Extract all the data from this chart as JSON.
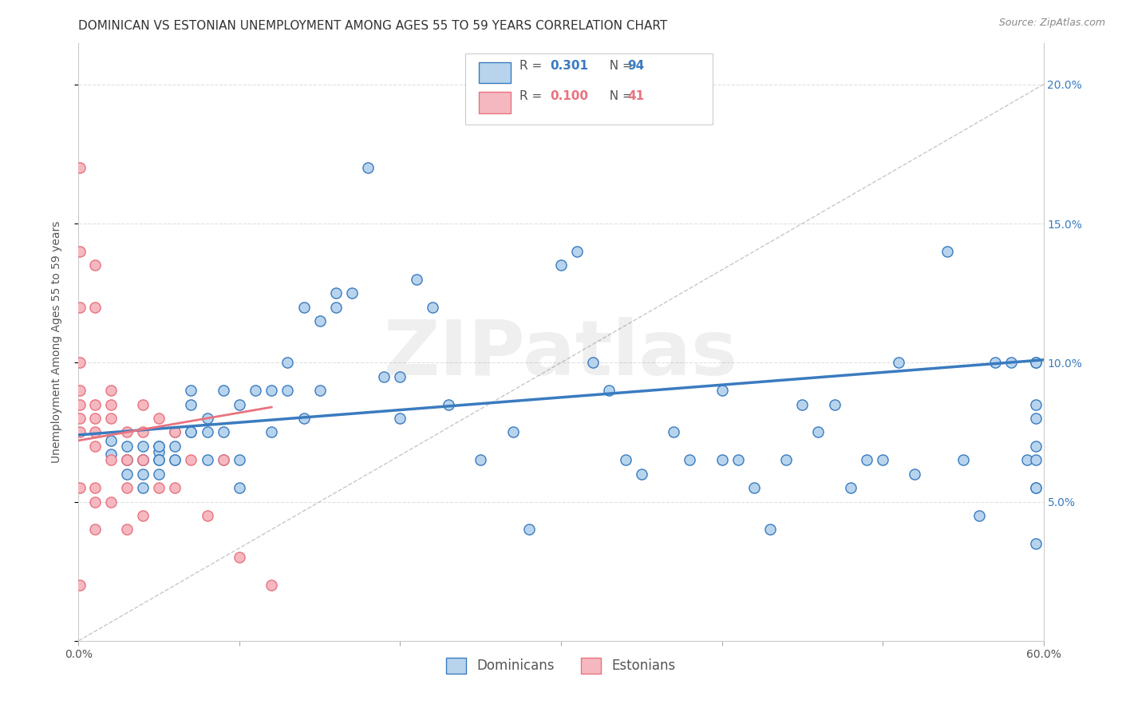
{
  "title": "DOMINICAN VS ESTONIAN UNEMPLOYMENT AMONG AGES 55 TO 59 YEARS CORRELATION CHART",
  "source": "Source: ZipAtlas.com",
  "ylabel": "Unemployment Among Ages 55 to 59 years",
  "xlim": [
    0.0,
    0.6
  ],
  "ylim": [
    0.0,
    0.215
  ],
  "dominican_color": "#b8d4ed",
  "estonian_color": "#f5b8c0",
  "dominican_line_color": "#3a7bbf",
  "estonian_line_color": "#e8737f",
  "ref_line_color": "#c8c8c8",
  "watermark": "ZIPatlas",
  "dominican_scatter_x": [
    0.02,
    0.02,
    0.03,
    0.03,
    0.03,
    0.03,
    0.04,
    0.04,
    0.04,
    0.04,
    0.04,
    0.04,
    0.05,
    0.05,
    0.05,
    0.05,
    0.05,
    0.05,
    0.06,
    0.06,
    0.06,
    0.06,
    0.07,
    0.07,
    0.07,
    0.07,
    0.08,
    0.08,
    0.08,
    0.09,
    0.09,
    0.09,
    0.1,
    0.1,
    0.1,
    0.11,
    0.12,
    0.12,
    0.13,
    0.13,
    0.14,
    0.14,
    0.15,
    0.15,
    0.16,
    0.16,
    0.17,
    0.18,
    0.19,
    0.2,
    0.2,
    0.21,
    0.22,
    0.23,
    0.25,
    0.27,
    0.28,
    0.3,
    0.31,
    0.32,
    0.33,
    0.34,
    0.35,
    0.37,
    0.38,
    0.4,
    0.4,
    0.41,
    0.42,
    0.43,
    0.44,
    0.45,
    0.46,
    0.47,
    0.48,
    0.49,
    0.5,
    0.51,
    0.52,
    0.54,
    0.55,
    0.56,
    0.57,
    0.58,
    0.59,
    0.595,
    0.595,
    0.595,
    0.595,
    0.595,
    0.595,
    0.595,
    0.595,
    0.595
  ],
  "dominican_scatter_y": [
    0.067,
    0.072,
    0.065,
    0.07,
    0.065,
    0.06,
    0.065,
    0.07,
    0.065,
    0.065,
    0.06,
    0.055,
    0.07,
    0.068,
    0.065,
    0.07,
    0.065,
    0.06,
    0.075,
    0.065,
    0.07,
    0.065,
    0.09,
    0.075,
    0.085,
    0.075,
    0.075,
    0.08,
    0.065,
    0.09,
    0.075,
    0.065,
    0.085,
    0.065,
    0.055,
    0.09,
    0.09,
    0.075,
    0.1,
    0.09,
    0.12,
    0.08,
    0.115,
    0.09,
    0.125,
    0.12,
    0.125,
    0.17,
    0.095,
    0.095,
    0.08,
    0.13,
    0.12,
    0.085,
    0.065,
    0.075,
    0.04,
    0.135,
    0.14,
    0.1,
    0.09,
    0.065,
    0.06,
    0.075,
    0.065,
    0.065,
    0.09,
    0.065,
    0.055,
    0.04,
    0.065,
    0.085,
    0.075,
    0.085,
    0.055,
    0.065,
    0.065,
    0.1,
    0.06,
    0.14,
    0.065,
    0.045,
    0.1,
    0.1,
    0.065,
    0.1,
    0.085,
    0.07,
    0.065,
    0.055,
    0.035,
    0.055,
    0.08,
    0.1
  ],
  "estonian_scatter_x": [
    0.001,
    0.001,
    0.001,
    0.001,
    0.001,
    0.001,
    0.001,
    0.001,
    0.001,
    0.001,
    0.01,
    0.01,
    0.01,
    0.01,
    0.01,
    0.01,
    0.01,
    0.01,
    0.01,
    0.02,
    0.02,
    0.02,
    0.02,
    0.02,
    0.03,
    0.03,
    0.03,
    0.03,
    0.04,
    0.04,
    0.04,
    0.04,
    0.05,
    0.05,
    0.06,
    0.06,
    0.07,
    0.08,
    0.09,
    0.1,
    0.12
  ],
  "estonian_scatter_y": [
    0.17,
    0.14,
    0.12,
    0.1,
    0.09,
    0.085,
    0.08,
    0.075,
    0.055,
    0.02,
    0.135,
    0.12,
    0.085,
    0.08,
    0.075,
    0.07,
    0.055,
    0.05,
    0.04,
    0.09,
    0.085,
    0.08,
    0.065,
    0.05,
    0.075,
    0.065,
    0.055,
    0.04,
    0.085,
    0.075,
    0.065,
    0.045,
    0.08,
    0.055,
    0.075,
    0.055,
    0.065,
    0.045,
    0.065,
    0.03,
    0.02
  ],
  "dominican_trend_x": [
    0.0,
    0.6
  ],
  "dominican_trend_y": [
    0.074,
    0.101
  ],
  "estonian_trend_x": [
    0.0,
    0.12
  ],
  "estonian_trend_y": [
    0.072,
    0.084
  ],
  "ref_line_x": [
    0.0,
    0.603
  ],
  "ref_line_y": [
    0.0,
    0.201
  ],
  "background_color": "#ffffff",
  "grid_color": "#e0e0e0",
  "title_fontsize": 11,
  "axis_label_fontsize": 10,
  "tick_fontsize": 10,
  "marker_size": 90,
  "marker_edge_width": 1.0
}
